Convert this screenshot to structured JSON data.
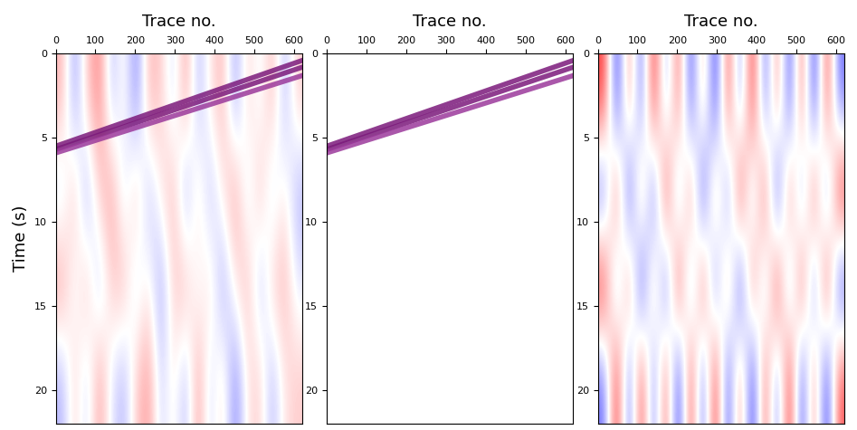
{
  "chart_data": [
    {
      "type": "heatmap",
      "xlabel": "Trace no.",
      "ylabel": "Time (s)",
      "xlim": [
        0,
        620
      ],
      "ylim": [
        22,
        0
      ],
      "xticks": [
        0,
        100,
        200,
        300,
        400,
        500,
        600
      ],
      "yticks": [
        0,
        5,
        10,
        15,
        20
      ],
      "crange": [
        -1,
        1
      ],
      "cells": [
        [
          0.3,
          -0.4,
          0.2,
          0.5,
          -0.3,
          0.1,
          -0.5,
          0.3,
          0.2,
          -0.2,
          0.4,
          -0.3,
          0.1,
          0.3,
          -0.4,
          0.2,
          -0.1,
          0.3,
          -0.3,
          0.2
        ],
        [
          -0.2,
          0.3,
          -0.4,
          0.2,
          0.4,
          -0.2,
          0.3,
          -0.3,
          0.1,
          0.3,
          -0.4,
          0.2,
          -0.3,
          0.1,
          0.4,
          -0.2,
          0.3,
          -0.2,
          0.1,
          -0.3
        ],
        [
          0.4,
          -0.1,
          0.3,
          -0.3,
          0.2,
          0.3,
          -0.2,
          0.1,
          -0.4,
          0.2,
          0.3,
          -0.1,
          0.2,
          -0.4,
          0.1,
          0.3,
          -0.3,
          0.2,
          0.3,
          -0.1
        ],
        [
          -0.3,
          0.2,
          -0.2,
          0.4,
          -0.1,
          -0.3,
          0.2,
          0.4,
          -0.2,
          0.1,
          -0.3,
          0.4,
          -0.2,
          0.2,
          -0.5,
          0.1,
          0.2,
          -0.3,
          0.1,
          0.2
        ]
      ],
      "series": [
        {
          "type": "line",
          "color": "#7b1a7b",
          "x": [
            0,
            620
          ],
          "values": [
            5.5,
            0.4
          ]
        },
        {
          "type": "line",
          "color": "#7b1a7b",
          "x": [
            0,
            620
          ],
          "values": [
            5.7,
            0.8
          ]
        },
        {
          "type": "line",
          "color": "#9b3a9b",
          "x": [
            0,
            620
          ],
          "values": [
            5.9,
            1.3
          ]
        }
      ]
    },
    {
      "type": "heatmap",
      "xlabel": "Trace no.",
      "xlim": [
        0,
        620
      ],
      "ylim": [
        22,
        0
      ],
      "xticks": [
        0,
        100,
        200,
        300,
        400,
        500,
        600
      ],
      "yticks": [
        0,
        5,
        10,
        15,
        20
      ],
      "series": [
        {
          "type": "line",
          "color": "#7b1a7b",
          "x": [
            0,
            620
          ],
          "values": [
            5.5,
            0.4
          ]
        },
        {
          "type": "line",
          "color": "#7b1a7b",
          "x": [
            0,
            620
          ],
          "values": [
            5.7,
            0.8
          ]
        },
        {
          "type": "line",
          "color": "#9b3a9b",
          "x": [
            0,
            620
          ],
          "values": [
            5.9,
            1.3
          ]
        }
      ]
    },
    {
      "type": "heatmap",
      "xlabel": "Trace no.",
      "xlim": [
        0,
        620
      ],
      "ylim": [
        22,
        0
      ],
      "xticks": [
        0,
        100,
        200,
        300,
        400,
        500,
        600
      ],
      "yticks": [
        0,
        5,
        10,
        15,
        20
      ],
      "crange": [
        -1,
        1
      ],
      "cells": [
        [
          0.8,
          -0.9,
          0.6,
          -0.7,
          0.9,
          -0.5,
          0.7,
          -0.8,
          0.5,
          -0.9,
          0.8,
          -0.6,
          0.9,
          -0.7,
          0.6,
          -0.8,
          0.7,
          -0.9,
          0.8,
          -0.6
        ],
        [
          -0.7,
          0.8,
          -0.9,
          0.6,
          -0.8,
          0.9,
          -0.6,
          0.7,
          -0.9,
          0.6,
          -0.7,
          0.9,
          -0.5,
          0.8,
          -0.9,
          0.7,
          -0.6,
          0.8,
          -0.7,
          0.9
        ],
        [
          0.9,
          -0.6,
          0.7,
          -0.9,
          0.5,
          -0.8,
          0.9,
          -0.6,
          0.8,
          -0.7,
          0.6,
          -0.9,
          0.7,
          -0.5,
          0.9,
          -0.6,
          0.8,
          -0.7,
          0.9,
          -0.8
        ],
        [
          -0.6,
          0.9,
          -0.7,
          0.8,
          -0.6,
          0.7,
          -0.9,
          0.8,
          -0.7,
          0.9,
          -0.8,
          0.6,
          -0.9,
          0.7,
          -0.6,
          0.9,
          -0.8,
          0.6,
          -0.9,
          0.7
        ]
      ]
    }
  ]
}
